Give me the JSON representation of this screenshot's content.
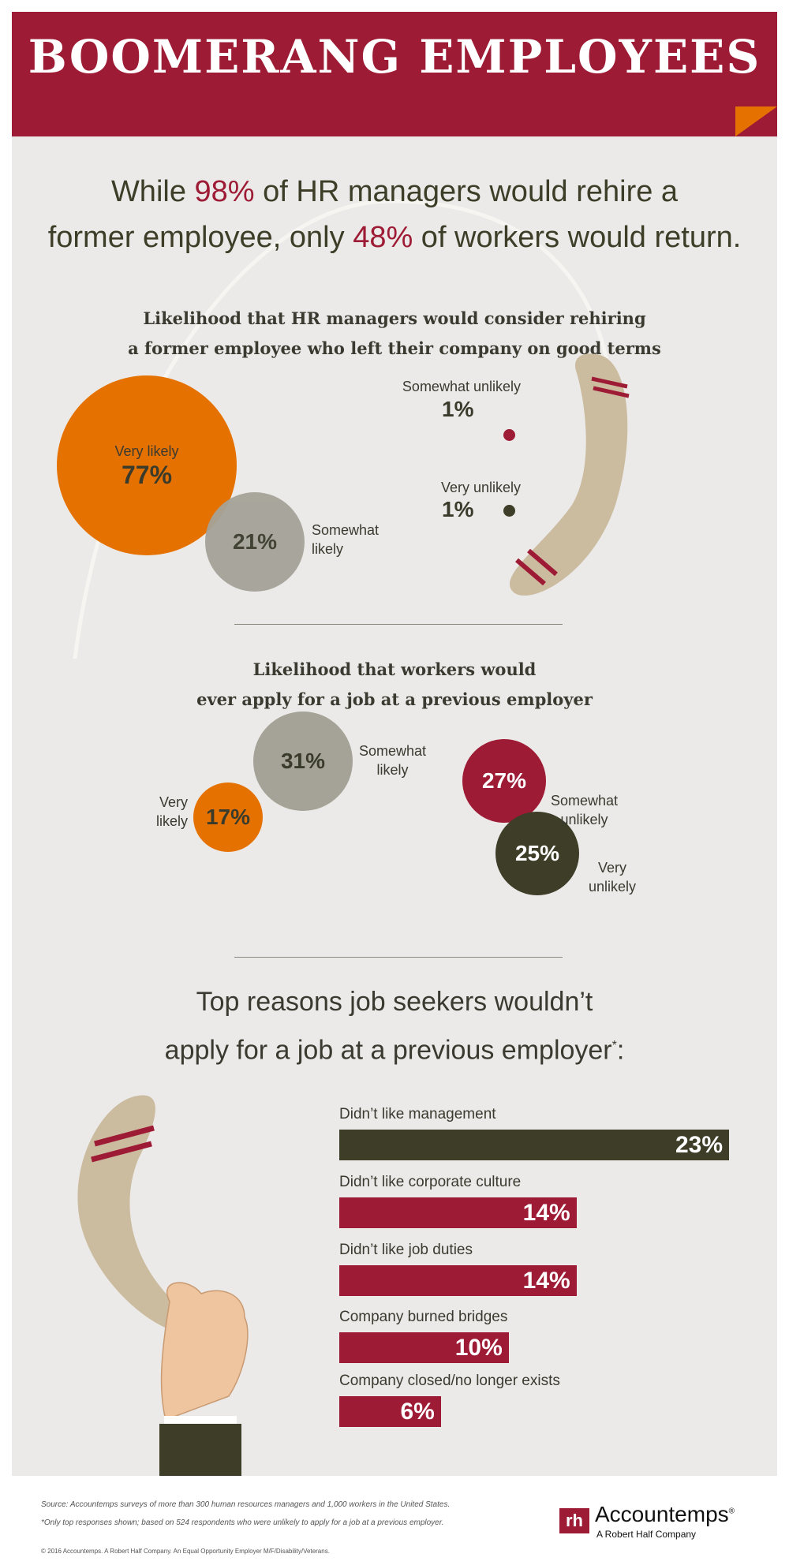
{
  "title": "BOOMERANG EMPLOYEES",
  "headline": {
    "l1a": "While ",
    "l1b": "98%",
    "l1c": " of HR managers would rehire a",
    "l2a": "former employee, only ",
    "l2b": "48%",
    "l2c": " of workers would return."
  },
  "section1": {
    "title1": "Likelihood that HR managers would consider rehiring",
    "title2": "a former employee who left their company on good terms",
    "items": [
      {
        "label": "Very likely",
        "value": "77%"
      },
      {
        "label": "Somewhat likely",
        "value": "21%"
      },
      {
        "label": "Somewhat unlikely",
        "value": "1%"
      },
      {
        "label": "Very unlikely",
        "value": "1%"
      }
    ]
  },
  "section2": {
    "title1": "Likelihood that workers would",
    "title2": "ever apply for a job at a previous employer",
    "items": [
      {
        "label1": "Very",
        "label2": "likely",
        "value": "17%"
      },
      {
        "label1": "Somewhat",
        "label2": "likely",
        "value": "31%"
      },
      {
        "label1": "Somewhat",
        "label2": "unlikely",
        "value": "27%"
      },
      {
        "label1": "Very",
        "label2": "unlikely",
        "value": "25%"
      }
    ]
  },
  "section3": {
    "title1": "Top reasons job seekers wouldn’t",
    "title2": "apply for a job at a previous employer",
    "asterisk": "*",
    "colon": ":",
    "bars": [
      {
        "label": "Didn’t like management",
        "value": 23,
        "text": "23%"
      },
      {
        "label": "Didn’t like corporate culture",
        "value": 14,
        "text": "14%"
      },
      {
        "label": "Didn’t like job duties",
        "value": 14,
        "text": "14%"
      },
      {
        "label": "Company burned bridges",
        "value": 10,
        "text": "10%"
      },
      {
        "label": "Company closed/no longer exists",
        "value": 6,
        "text": "6%"
      }
    ]
  },
  "footer": {
    "source": "Source: Accountemps surveys of more than 300 human resources managers and 1,000 workers in the United States.",
    "note": "*Only top responses shown; based on 524 respondents who were unlikely to apply for a job at a previous employer.",
    "copyright": "© 2016 Accountemps. A Robert Half Company. An Equal Opportunity Employer M/F/Disability/Veterans.",
    "logo_mark": "rh",
    "logo_name": "Accountemps",
    "logo_reg": "®",
    "logo_tag": "A Robert Half Company"
  },
  "colors": {
    "red": "#9e1b35",
    "orange": "#e57200",
    "gray": "#a5a398",
    "dark": "#3d3d28",
    "background": "#ebeae8",
    "boomerang": "#cbbb9f"
  }
}
